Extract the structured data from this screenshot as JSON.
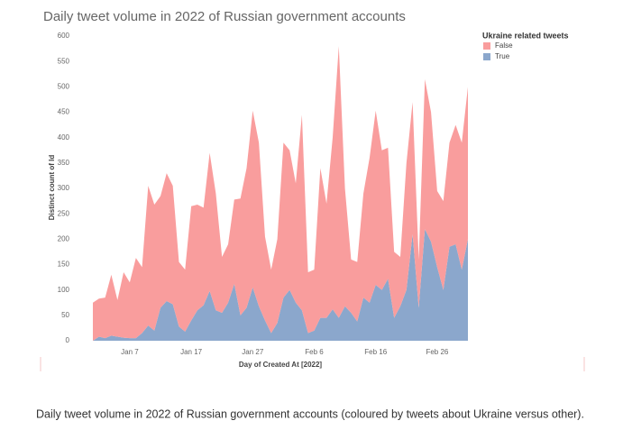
{
  "chart_data": {
    "type": "stacked-area",
    "title": "Daily tweet volume in 2022 of Russian government accounts",
    "caption": "Daily tweet volume in 2022 of Russian government accounts (coloured by tweets about Ukraine versus other).",
    "x_label": "Day of Created At [2022]",
    "y_label": "Distinct count of Id",
    "legend_title": "Ukraine related tweets",
    "legend_position": "top-right",
    "categories": [
      null,
      null,
      null,
      null,
      null,
      null,
      "Jan 7",
      null,
      null,
      null,
      null,
      null,
      null,
      null,
      null,
      null,
      "Jan 17",
      null,
      null,
      null,
      null,
      null,
      null,
      null,
      null,
      null,
      "Jan 27",
      null,
      null,
      null,
      null,
      null,
      null,
      null,
      null,
      null,
      "Feb 6",
      null,
      null,
      null,
      null,
      null,
      null,
      null,
      null,
      null,
      "Feb 16",
      null,
      null,
      null,
      null,
      null,
      null,
      null,
      null,
      null,
      "Feb 26",
      null,
      null,
      null,
      null,
      null
    ],
    "series": [
      {
        "name": "False",
        "color": "#f99d9d",
        "values": [
          75,
          75,
          80,
          120,
          72,
          129,
          110,
          158,
          130,
          275,
          248,
          220,
          252,
          233,
          127,
          122,
          225,
          208,
          192,
          272,
          230,
          110,
          115,
          166,
          230,
          275,
          348,
          322,
          165,
          125,
          165,
          305,
          275,
          235,
          385,
          120,
          120,
          295,
          225,
          338,
          535,
          232,
          105,
          117,
          205,
          285,
          343,
          275,
          258,
          130,
          97,
          250,
          260,
          95,
          295,
          255,
          150,
          175,
          205,
          235,
          250,
          300
        ]
      },
      {
        "name": "True",
        "color": "#8ba7cc",
        "values": [
          0,
          8,
          5,
          10,
          8,
          6,
          5,
          5,
          15,
          30,
          20,
          65,
          78,
          72,
          28,
          18,
          40,
          60,
          70,
          98,
          60,
          55,
          75,
          112,
          50,
          65,
          105,
          68,
          40,
          15,
          35,
          85,
          100,
          75,
          60,
          15,
          20,
          45,
          45,
          62,
          45,
          68,
          55,
          38,
          85,
          75,
          110,
          100,
          122,
          45,
          68,
          100,
          210,
          65,
          220,
          195,
          145,
          100,
          185,
          190,
          140,
          200
        ]
      }
    ],
    "ylim": [
      0,
      600
    ],
    "yticks": [
      0,
      50,
      100,
      150,
      200,
      250,
      300,
      350,
      400,
      450,
      500,
      550,
      600
    ]
  }
}
